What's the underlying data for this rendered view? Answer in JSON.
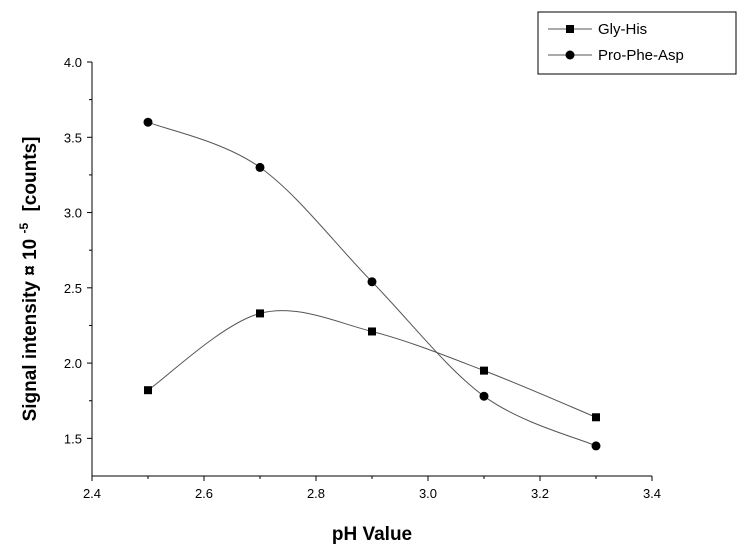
{
  "chart_data": {
    "type": "line",
    "title": "",
    "xlabel": "pH Value",
    "ylabel": "Signal intensity ¤ 10⁻⁵ [counts]",
    "ylabel_main": "Signal intensity ¤ 10",
    "ylabel_exp": "-5",
    "ylabel_unit": "[counts]",
    "xlim": [
      2.4,
      3.4
    ],
    "ylim": [
      1.25,
      4.0
    ],
    "x_ticks": [
      2.4,
      2.6,
      2.8,
      3.0,
      3.2,
      3.4
    ],
    "x_tick_labels": [
      "2.4",
      "2.6",
      "2.8",
      "3.0",
      "3.2",
      "3.4"
    ],
    "y_ticks": [
      1.5,
      2.0,
      2.5,
      3.0,
      3.5,
      4.0
    ],
    "y_tick_labels": [
      "1.5",
      "2.0",
      "2.5",
      "3.0",
      "3.5",
      "4.0"
    ],
    "grid": false,
    "legend_position": "top-right",
    "series": [
      {
        "name": "Gly-His",
        "marker": "square",
        "x": [
          2.5,
          2.7,
          2.9,
          3.1,
          3.3
        ],
        "y": [
          1.82,
          2.33,
          2.21,
          1.95,
          1.64
        ]
      },
      {
        "name": "Pro-Phe-Asp",
        "marker": "circle",
        "x": [
          2.5,
          2.7,
          2.9,
          3.1,
          3.3
        ],
        "y": [
          3.6,
          3.3,
          2.54,
          1.78,
          1.45
        ]
      }
    ]
  }
}
